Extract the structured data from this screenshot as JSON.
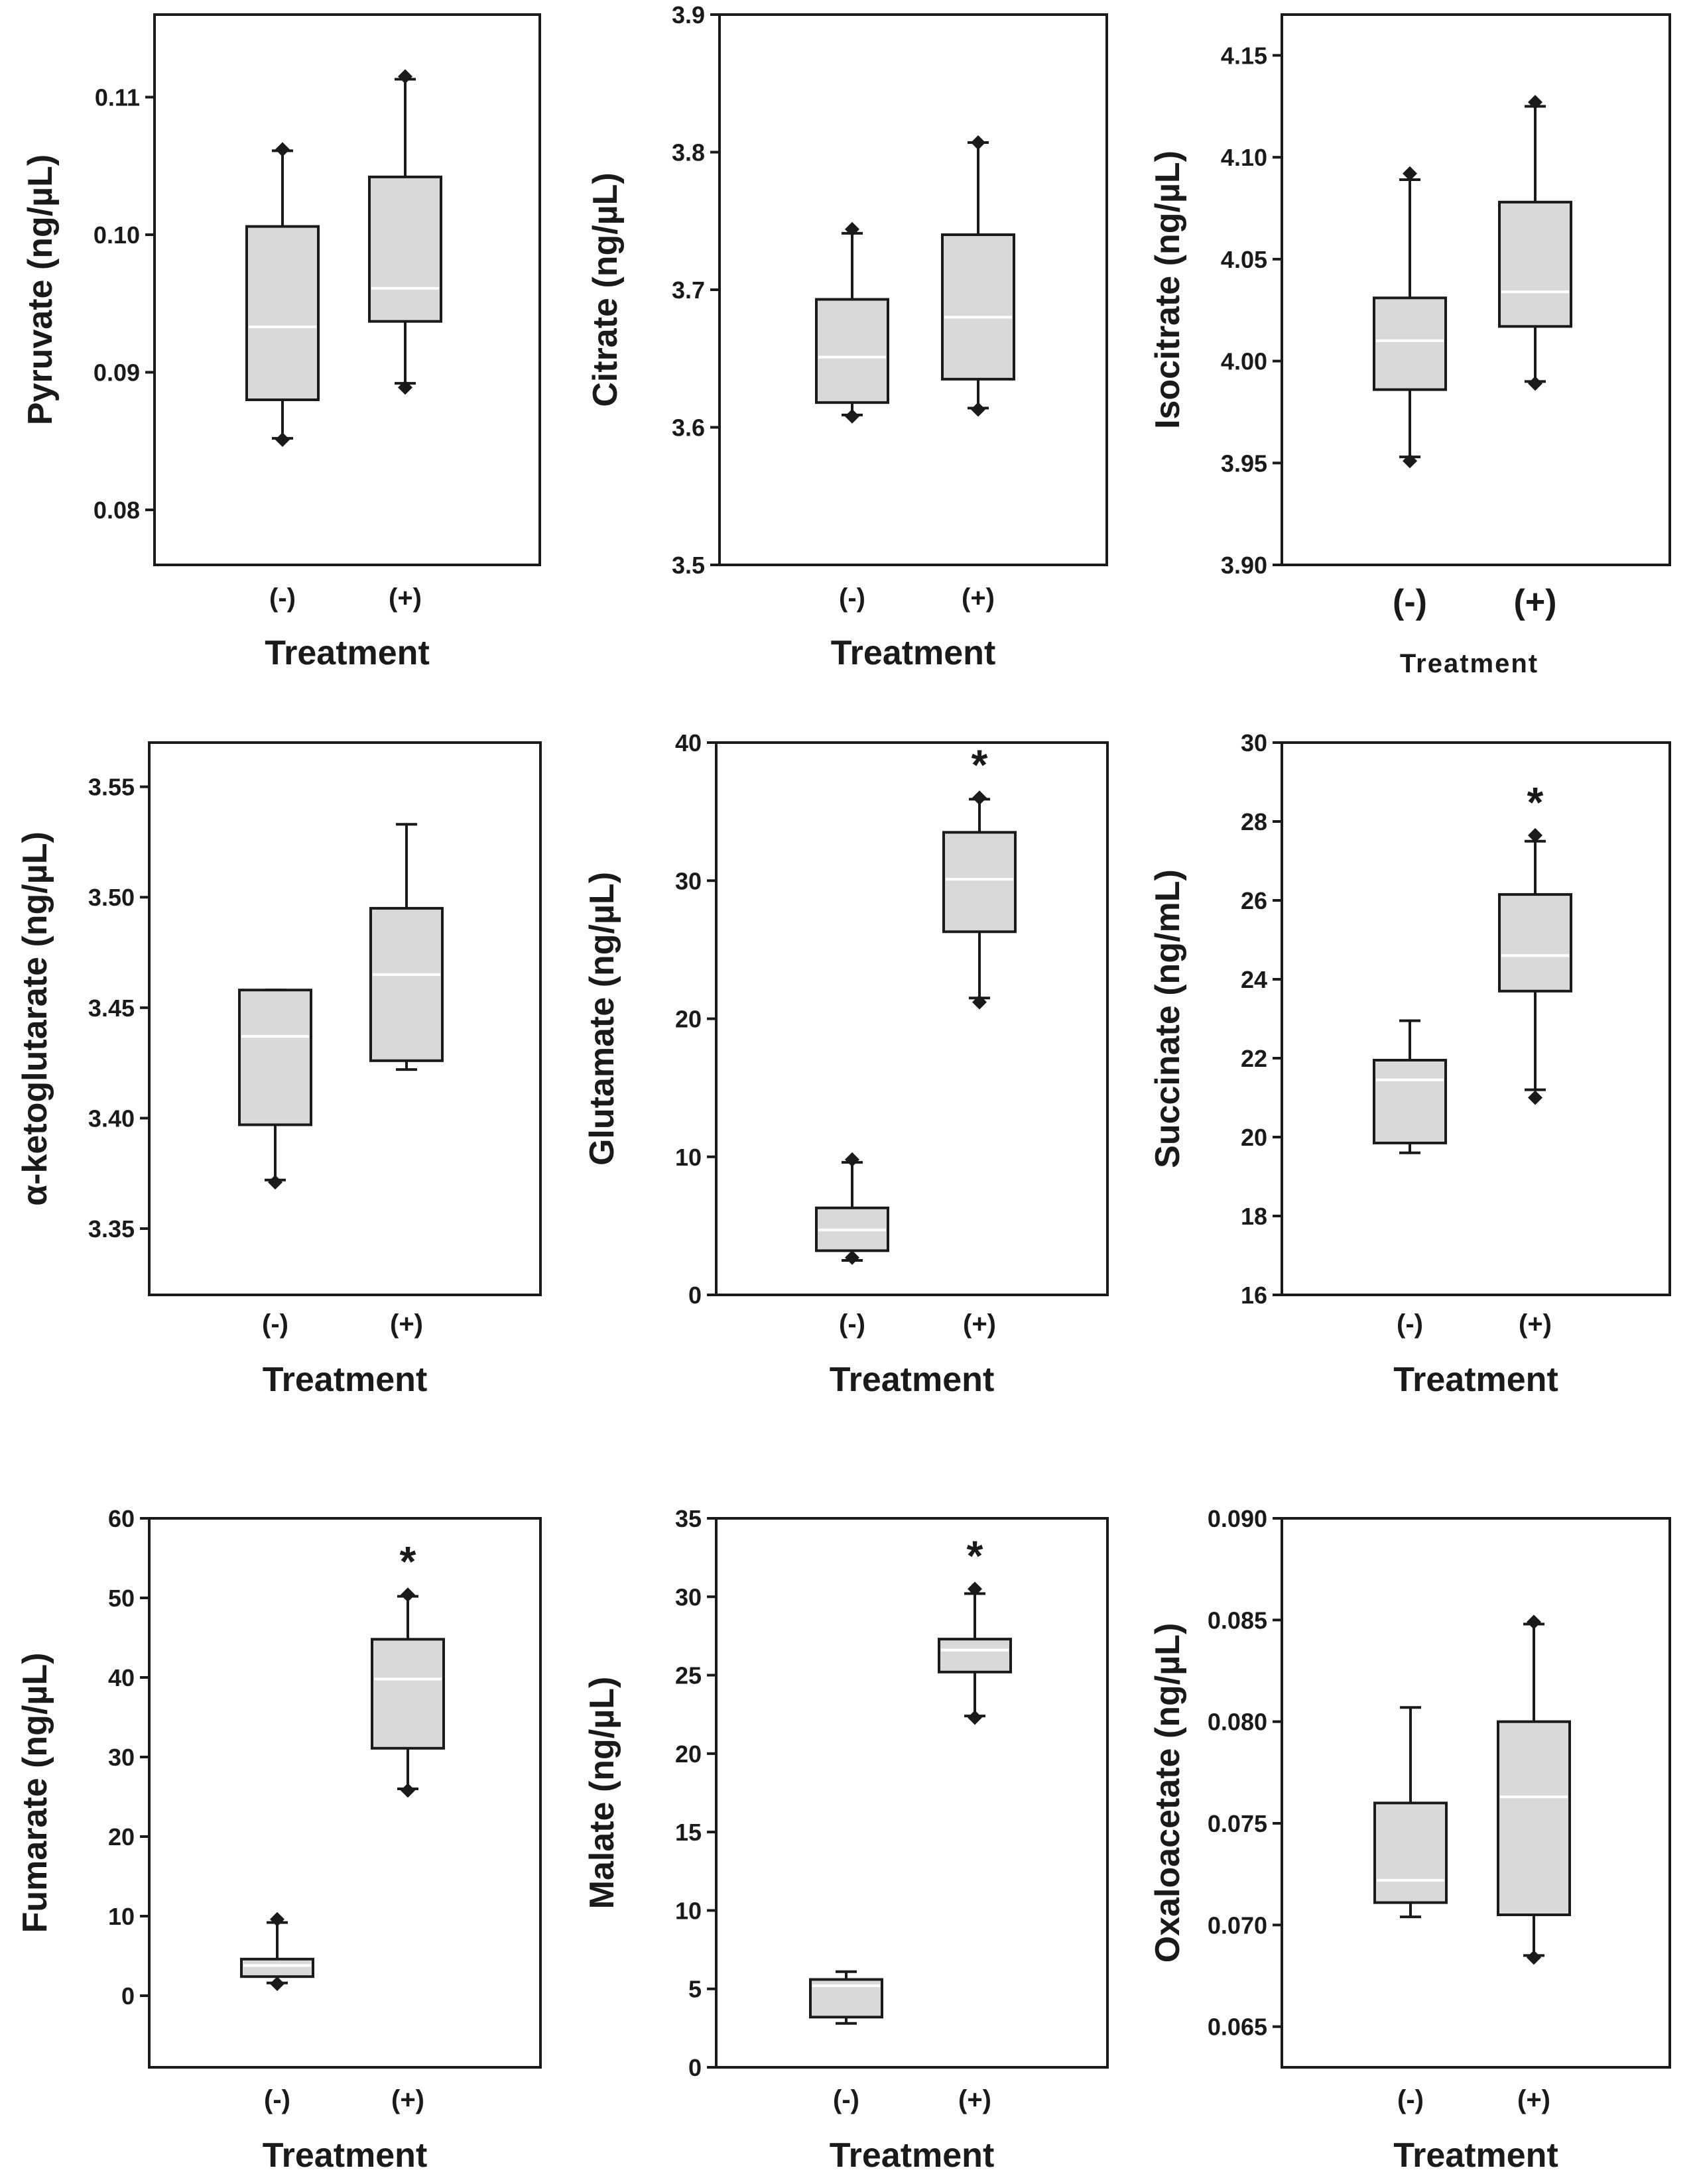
{
  "chart_data": [
    {
      "type": "box",
      "id": "pyruvate",
      "ylabel": "Pyruvate (ng/µL)",
      "xlabel": "Treatment",
      "ylim": [
        0.076,
        0.116
      ],
      "yticks": [
        0.08,
        0.09,
        0.1,
        0.11
      ],
      "tick_labels": [
        "0.08",
        "0.09",
        "0.10",
        "0.11"
      ],
      "categories": [
        "(-)",
        "(+)"
      ],
      "boxes": [
        {
          "q1": 0.088,
          "median": 0.0933,
          "q3": 0.1006,
          "whisker_low": 0.0852,
          "whisker_high": 0.1061,
          "outliers": [
            0.0851,
            0.1062
          ]
        },
        {
          "q1": 0.0937,
          "median": 0.0961,
          "q3": 0.1042,
          "whisker_low": 0.0892,
          "whisker_high": 0.1113,
          "outliers": [
            0.0889,
            0.1115
          ]
        }
      ],
      "significant": [
        false,
        false
      ]
    },
    {
      "type": "box",
      "id": "citrate",
      "ylabel": "Citrate (ng/µL)",
      "xlabel": "Treatment",
      "ylim": [
        3.5,
        3.9
      ],
      "yticks": [
        3.5,
        3.6,
        3.7,
        3.8,
        3.9
      ],
      "tick_labels": [
        "3.5",
        "3.6",
        "3.7",
        "3.8",
        "3.9"
      ],
      "categories": [
        "(-)",
        "(+)"
      ],
      "boxes": [
        {
          "q1": 3.618,
          "median": 3.651,
          "q3": 3.693,
          "whisker_low": 3.609,
          "whisker_high": 3.741,
          "outliers": [
            3.608,
            3.744
          ]
        },
        {
          "q1": 3.635,
          "median": 3.68,
          "q3": 3.74,
          "whisker_low": 3.614,
          "whisker_high": 3.807,
          "outliers": [
            3.613,
            3.807
          ]
        }
      ],
      "significant": [
        false,
        false
      ]
    },
    {
      "type": "box",
      "id": "isocitrate",
      "ylabel": "Isocitrate (ng/µL)",
      "xlabel": "Treatment",
      "ylim": [
        3.9,
        4.17
      ],
      "yticks": [
        3.9,
        3.95,
        4.0,
        4.05,
        4.1,
        4.15
      ],
      "tick_labels": [
        "3.90",
        "3.95",
        "4.00",
        "4.05",
        "4.10",
        "4.15"
      ],
      "categories": [
        "(-)",
        "(+)"
      ],
      "boxes": [
        {
          "q1": 3.986,
          "median": 4.01,
          "q3": 4.031,
          "whisker_low": 3.953,
          "whisker_high": 4.089,
          "outliers": [
            3.951,
            4.092
          ]
        },
        {
          "q1": 4.017,
          "median": 4.034,
          "q3": 4.078,
          "whisker_low": 3.99,
          "whisker_high": 4.125,
          "outliers": [
            3.989,
            4.127
          ]
        }
      ],
      "significant": [
        false,
        false
      ]
    },
    {
      "type": "box",
      "id": "alpha-ketoglutarate",
      "ylabel": "α-ketoglutarate (ng/µL)",
      "xlabel": "Treatment",
      "ylim": [
        3.32,
        3.57
      ],
      "yticks": [
        3.35,
        3.4,
        3.45,
        3.5,
        3.55
      ],
      "tick_labels": [
        "3.35",
        "3.40",
        "3.45",
        "3.50",
        "3.55"
      ],
      "categories": [
        "(-)",
        "(+)"
      ],
      "boxes": [
        {
          "q1": 3.397,
          "median": 3.437,
          "q3": 3.458,
          "whisker_low": 3.372,
          "whisker_high": 3.458,
          "outliers": [
            3.371
          ]
        },
        {
          "q1": 3.426,
          "median": 3.465,
          "q3": 3.495,
          "whisker_low": 3.422,
          "whisker_high": 3.533,
          "outliers": []
        }
      ],
      "significant": [
        false,
        false
      ]
    },
    {
      "type": "box",
      "id": "glutamate",
      "ylabel": "Glutamate (ng/µL)",
      "xlabel": "Treatment",
      "ylim": [
        0,
        40
      ],
      "yticks": [
        0,
        10,
        20,
        30,
        40
      ],
      "tick_labels": [
        "0",
        "10",
        "20",
        "30",
        "40"
      ],
      "categories": [
        "(-)",
        "(+)"
      ],
      "boxes": [
        {
          "q1": 3.2,
          "median": 4.7,
          "q3": 6.3,
          "whisker_low": 2.5,
          "whisker_high": 9.6,
          "outliers": [
            2.7,
            9.8
          ]
        },
        {
          "q1": 26.3,
          "median": 30.1,
          "q3": 33.5,
          "whisker_low": 21.5,
          "whisker_high": 35.9,
          "outliers": [
            21.2,
            36.0
          ]
        }
      ],
      "significant": [
        false,
        true
      ],
      "significance_marker": "*"
    },
    {
      "type": "box",
      "id": "succinate",
      "ylabel": "Succinate (ng/mL)",
      "xlabel": "Treatment",
      "ylim": [
        16,
        30
      ],
      "yticks": [
        16,
        18,
        20,
        22,
        24,
        26,
        28,
        30
      ],
      "tick_labels": [
        "16",
        "18",
        "20",
        "22",
        "24",
        "26",
        "28",
        "30"
      ],
      "categories": [
        "(-)",
        "(+)"
      ],
      "boxes": [
        {
          "q1": 19.85,
          "median": 21.45,
          "q3": 21.95,
          "whisker_low": 19.6,
          "whisker_high": 22.95,
          "outliers": []
        },
        {
          "q1": 23.7,
          "median": 24.6,
          "q3": 26.15,
          "whisker_low": 21.2,
          "whisker_high": 27.5,
          "outliers": [
            21.0,
            27.65
          ]
        }
      ],
      "significant": [
        false,
        true
      ],
      "significance_marker": "*"
    },
    {
      "type": "box",
      "id": "fumarate",
      "ylabel": "Fumarate (ng/µL)",
      "xlabel": "Treatment",
      "ylim": [
        -9,
        60
      ],
      "yticks": [
        0,
        10,
        20,
        30,
        40,
        50,
        60
      ],
      "tick_labels": [
        "0",
        "10",
        "20",
        "30",
        "40",
        "50",
        "60"
      ],
      "categories": [
        "(-)",
        "(+)"
      ],
      "boxes": [
        {
          "q1": 2.4,
          "median": 3.8,
          "q3": 4.6,
          "whisker_low": 1.6,
          "whisker_high": 9.2,
          "outliers": [
            1.5,
            9.6
          ]
        },
        {
          "q1": 31.1,
          "median": 39.8,
          "q3": 44.8,
          "whisker_low": 26.0,
          "whisker_high": 50.2,
          "outliers": [
            25.8,
            50.4
          ]
        }
      ],
      "significant": [
        false,
        true
      ],
      "significance_marker": "*"
    },
    {
      "type": "box",
      "id": "malate",
      "ylabel": "Malate (ng/µL)",
      "xlabel": "Treatment",
      "ylim": [
        0,
        35
      ],
      "yticks": [
        0,
        5,
        10,
        15,
        20,
        25,
        30,
        35
      ],
      "tick_labels": [
        "0",
        "5",
        "10",
        "15",
        "20",
        "25",
        "30",
        "35"
      ],
      "categories": [
        "(-)",
        "(+)"
      ],
      "boxes": [
        {
          "q1": 3.2,
          "median": 5.2,
          "q3": 5.6,
          "whisker_low": 2.8,
          "whisker_high": 6.1,
          "outliers": []
        },
        {
          "q1": 25.2,
          "median": 26.6,
          "q3": 27.3,
          "whisker_low": 22.4,
          "whisker_high": 30.2,
          "outliers": [
            22.3,
            30.5
          ]
        }
      ],
      "significant": [
        false,
        true
      ],
      "significance_marker": "*"
    },
    {
      "type": "box",
      "id": "oxaloacetate",
      "ylabel": "Oxaloacetate (ng/µL)",
      "xlabel": "Treatment",
      "ylim": [
        0.063,
        0.09
      ],
      "yticks": [
        0.065,
        0.07,
        0.075,
        0.08,
        0.085,
        0.09
      ],
      "tick_labels": [
        "0.065",
        "0.070",
        "0.075",
        "0.080",
        "0.085",
        "0.090"
      ],
      "categories": [
        "(-)",
        "(+)"
      ],
      "boxes": [
        {
          "q1": 0.0711,
          "median": 0.0722,
          "q3": 0.076,
          "whisker_low": 0.0704,
          "whisker_high": 0.0807,
          "outliers": []
        },
        {
          "q1": 0.0705,
          "median": 0.0763,
          "q3": 0.08,
          "whisker_low": 0.0685,
          "whisker_high": 0.0848,
          "outliers": [
            0.0684,
            0.0849
          ]
        }
      ],
      "significant": [
        false,
        false
      ]
    }
  ]
}
